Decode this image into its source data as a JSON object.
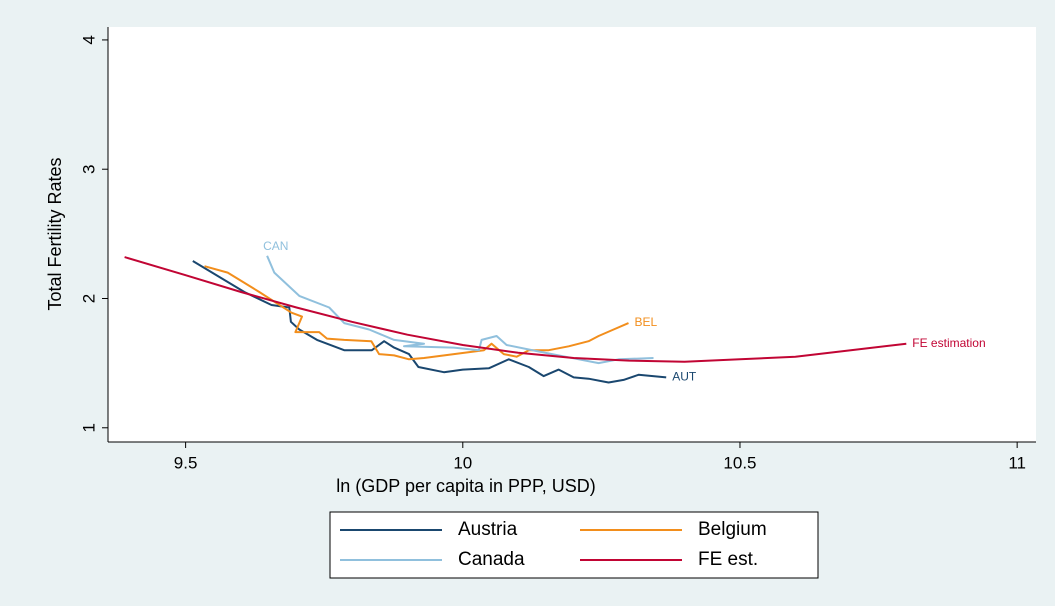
{
  "chart_data": {
    "type": "line",
    "x_label": "ln (GDP per capita in PPP, USD)",
    "y_label": "Total Fertility Rates",
    "xlim": [
      9.36,
      11.034
    ],
    "ylim": [
      0.89,
      4.1
    ],
    "xticks": [
      9.5,
      10,
      10.5,
      11
    ],
    "yticks": [
      1,
      2,
      3,
      4
    ],
    "grid": false,
    "series": [
      {
        "name": "Austria",
        "label": "AUT",
        "color": "#1a476f",
        "x": [
          9.513,
          9.606,
          9.655,
          9.687,
          9.69,
          9.705,
          9.737,
          9.786,
          9.836,
          9.858,
          9.876,
          9.903,
          9.92,
          9.966,
          10.0,
          10.047,
          10.083,
          10.119,
          10.146,
          10.173,
          10.2,
          10.227,
          10.263,
          10.29,
          10.317,
          10.367
        ],
        "values": [
          2.29,
          2.05,
          1.95,
          1.93,
          1.82,
          1.76,
          1.68,
          1.6,
          1.6,
          1.67,
          1.62,
          1.57,
          1.47,
          1.43,
          1.45,
          1.46,
          1.53,
          1.47,
          1.4,
          1.45,
          1.39,
          1.38,
          1.35,
          1.37,
          1.41,
          1.39
        ]
      },
      {
        "name": "Belgium",
        "label": "BEL",
        "color": "#f28e1c",
        "x": [
          9.534,
          9.576,
          9.633,
          9.691,
          9.71,
          9.698,
          9.741,
          9.755,
          9.786,
          9.835,
          9.849,
          9.876,
          9.903,
          9.93,
          9.984,
          10.038,
          10.052,
          10.074,
          10.097,
          10.119,
          10.155,
          10.191,
          10.227,
          10.245,
          10.272,
          10.299
        ],
        "values": [
          2.25,
          2.2,
          2.05,
          1.89,
          1.86,
          1.74,
          1.74,
          1.69,
          1.68,
          1.67,
          1.57,
          1.56,
          1.53,
          1.54,
          1.57,
          1.6,
          1.65,
          1.57,
          1.55,
          1.6,
          1.6,
          1.63,
          1.67,
          1.71,
          1.76,
          1.81
        ]
      },
      {
        "name": "Canada",
        "label": "CAN",
        "color": "#90c0dd",
        "x": [
          9.647,
          9.66,
          9.705,
          9.759,
          9.786,
          9.831,
          9.876,
          9.93,
          9.894,
          9.984,
          10.029,
          10.034,
          10.061,
          10.079,
          10.137,
          10.209,
          10.245,
          10.281,
          10.344
        ],
        "values": [
          2.33,
          2.2,
          2.02,
          1.93,
          1.81,
          1.76,
          1.68,
          1.65,
          1.63,
          1.62,
          1.6,
          1.68,
          1.71,
          1.64,
          1.59,
          1.53,
          1.5,
          1.53,
          1.54
        ]
      },
      {
        "name": "FE est.",
        "label": "FE estimation",
        "color": "#c10534",
        "x": [
          9.39,
          9.5,
          9.6,
          9.7,
          9.8,
          9.9,
          10.0,
          10.1,
          10.2,
          10.3,
          10.4,
          10.5,
          10.6,
          10.7,
          10.8
        ],
        "values": [
          2.32,
          2.18,
          2.05,
          1.93,
          1.82,
          1.72,
          1.64,
          1.58,
          1.54,
          1.52,
          1.51,
          1.53,
          1.55,
          1.6,
          1.65
        ]
      }
    ]
  }
}
